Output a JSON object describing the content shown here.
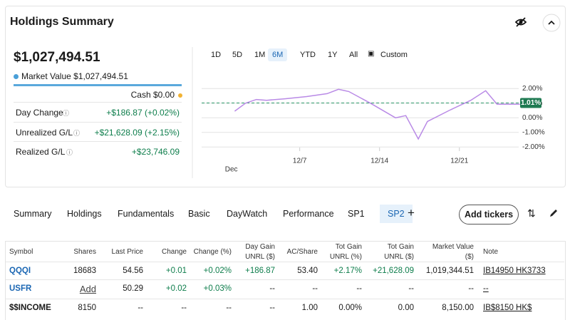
{
  "header": {
    "title": "Holdings Summary"
  },
  "summary": {
    "total": "$1,027,494.51",
    "market_value_label": "Market Value",
    "market_value": "$1,027,494.51",
    "cash_label": "Cash",
    "cash": "$0.00",
    "rows": [
      {
        "label": "Day Change",
        "value": "+$186.87 (+0.02%)"
      },
      {
        "label": "Unrealized G/L",
        "value": "+$21,628.09 (+2.15%)"
      },
      {
        "label": "Realized G/L",
        "value": "+$23,746.09"
      }
    ]
  },
  "ranges": [
    "1D",
    "5D",
    "1M",
    "6M",
    "YTD",
    "1Y",
    "All",
    "Custom"
  ],
  "active_range": 3,
  "chart": {
    "type": "line",
    "x": [
      1.3,
      2.25,
      3.2,
      4.1,
      5.7,
      7.6,
      9.4,
      10.4,
      11.3,
      13.2,
      15.4,
      16.3,
      17.4,
      18.2,
      20.1,
      22,
      23.3,
      24.3,
      26.3
    ],
    "values": [
      0.45,
      1,
      1.25,
      1.2,
      1.3,
      1.45,
      1.65,
      1.95,
      1.8,
      1,
      0,
      0.15,
      -1.45,
      -0.25,
      0.5,
      1.2,
      1.85,
      0.93,
      0.93
    ],
    "color": "#b98ae6",
    "xlim": [
      -1.6,
      26.2
    ],
    "xticks": [
      {
        "value": 7,
        "label": "12/7"
      },
      {
        "value": 14,
        "label": "12/14"
      },
      {
        "value": 21,
        "label": "12/21"
      }
    ],
    "month_label": {
      "value": 1,
      "label": "Dec"
    },
    "ylim": [
      -2.4,
      2.5
    ],
    "yticks": [
      {
        "value": 2,
        "label": "2.00%"
      },
      {
        "value": 1,
        "label": "1.00%"
      },
      {
        "value": 0,
        "label": "0.00%"
      },
      {
        "value": -1,
        "label": "-1.00%"
      },
      {
        "value": -2,
        "label": "-2.00%"
      }
    ],
    "current": {
      "value": 1.01,
      "label": "1.01%"
    },
    "grid": true
  },
  "tabs": [
    "Summary",
    "Holdings",
    "Fundamentals",
    "Basic",
    "DayWatch",
    "Performance",
    "SP1",
    "SP2"
  ],
  "active_tab": 7,
  "add_tickers": "Add tickers",
  "table": {
    "columns": [
      "Symbol",
      "Shares",
      "Last Price",
      "Change",
      "Change (%)",
      "Day Gain\nUNRL ($)",
      "AC/Share",
      "Tot Gain\nUNRL (%)",
      "Tot Gain\nUNRL ($)",
      "Market Value\n($)",
      "Note"
    ],
    "rows": [
      [
        "QQQI",
        "18683",
        "54.56",
        "+0.01",
        "+0.02%",
        "+186.87",
        "53.40",
        "+2.17%",
        "+21,628.09",
        "1,019,344.51",
        "IB14950 HK3733"
      ],
      [
        "USFR",
        "Add",
        "50.29",
        "+0.02",
        "+0.03%",
        "--",
        "--",
        "--",
        "--",
        "--",
        "--"
      ],
      [
        "$$INCOME",
        "8150",
        "--",
        "--",
        "--",
        "--",
        "1.00",
        "0.00%",
        "0.00",
        "8,150.00",
        "IB$8150 HK$"
      ]
    ]
  }
}
